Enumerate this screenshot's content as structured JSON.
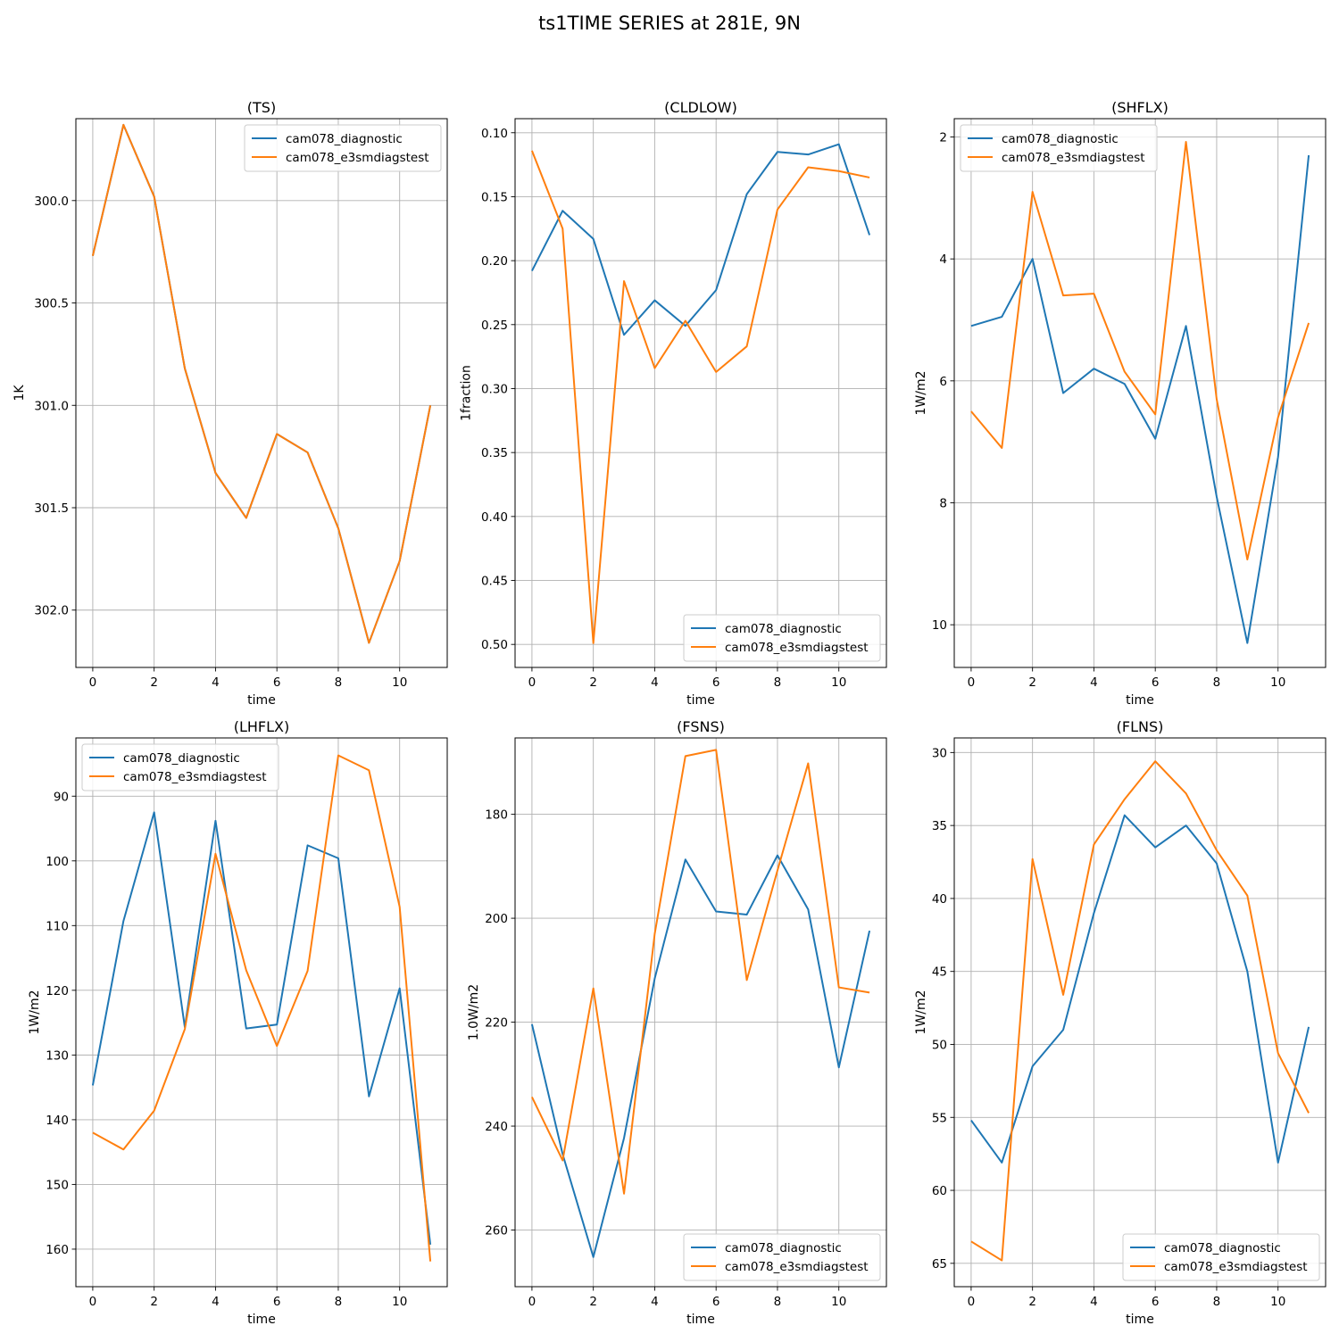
{
  "figure": {
    "title": "ts1TIME SERIES at 281E, 9N"
  },
  "colors": {
    "cam078_diagnostic": "#1f77b4",
    "cam078_e3smdiagstest": "#ff7f0e",
    "grid": "#b0b0b0"
  },
  "chart_data": [
    {
      "type": "line",
      "title": "(TS)",
      "xlabel": "time",
      "ylabel": "1K",
      "xlim": [
        -0.55,
        11.55
      ],
      "ylim": [
        302.28,
        299.6
      ],
      "y_inverted": true,
      "xticks": [
        0,
        2,
        4,
        6,
        8,
        10
      ],
      "yticks": [
        300.0,
        300.5,
        301.0,
        301.5,
        302.0
      ],
      "ytick_labels": [
        "300.0",
        "300.5",
        "301.0",
        "301.5",
        "302.0"
      ],
      "grid": true,
      "legend": "upper right",
      "x": [
        0,
        1,
        2,
        3,
        4,
        5,
        6,
        7,
        8,
        9,
        10,
        11
      ],
      "series": [
        {
          "name": "cam078_diagnostic",
          "values": [
            300.27,
            299.63,
            299.98,
            300.82,
            301.33,
            301.55,
            301.14,
            301.23,
            301.6,
            302.16,
            301.76,
            301.0
          ]
        },
        {
          "name": "cam078_e3smdiagstest",
          "values": [
            300.27,
            299.63,
            299.98,
            300.82,
            301.33,
            301.55,
            301.14,
            301.23,
            301.6,
            302.16,
            301.76,
            301.0
          ]
        }
      ]
    },
    {
      "type": "line",
      "title": "(CLDLOW)",
      "xlabel": "time",
      "ylabel": "1fraction",
      "xlim": [
        -0.55,
        11.55
      ],
      "ylim": [
        0.518,
        0.089
      ],
      "y_inverted": true,
      "xticks": [
        0,
        2,
        4,
        6,
        8,
        10
      ],
      "yticks": [
        0.1,
        0.15,
        0.2,
        0.25,
        0.3,
        0.35,
        0.4,
        0.45,
        0.5
      ],
      "ytick_labels": [
        "0.10",
        "0.15",
        "0.20",
        "0.25",
        "0.30",
        "0.35",
        "0.40",
        "0.45",
        "0.50"
      ],
      "grid": true,
      "legend": "lower right",
      "x": [
        0,
        1,
        2,
        3,
        4,
        5,
        6,
        7,
        8,
        9,
        10,
        11
      ],
      "series": [
        {
          "name": "cam078_diagnostic",
          "values": [
            0.208,
            0.161,
            0.183,
            0.258,
            0.231,
            0.251,
            0.223,
            0.148,
            0.115,
            0.117,
            0.109,
            0.18
          ]
        },
        {
          "name": "cam078_e3smdiagstest",
          "values": [
            0.114,
            0.175,
            0.499,
            0.216,
            0.284,
            0.247,
            0.287,
            0.267,
            0.16,
            0.127,
            0.13,
            0.135
          ]
        }
      ]
    },
    {
      "type": "line",
      "title": "(SHFLX)",
      "xlabel": "time",
      "ylabel": "1W/m2",
      "xlim": [
        -0.55,
        11.55
      ],
      "ylim": [
        10.7,
        1.7
      ],
      "y_inverted": true,
      "xticks": [
        0,
        2,
        4,
        6,
        8,
        10
      ],
      "yticks": [
        2,
        4,
        6,
        8,
        10
      ],
      "ytick_labels": [
        "2",
        "4",
        "6",
        "8",
        "10"
      ],
      "grid": true,
      "legend": "upper left",
      "x": [
        0,
        1,
        2,
        3,
        4,
        5,
        6,
        7,
        8,
        9,
        10,
        11
      ],
      "series": [
        {
          "name": "cam078_diagnostic",
          "values": [
            5.1,
            4.95,
            4.0,
            6.2,
            5.8,
            6.05,
            6.95,
            5.1,
            7.9,
            10.3,
            7.25,
            2.3
          ]
        },
        {
          "name": "cam078_e3smdiagstest",
          "values": [
            6.5,
            7.1,
            2.9,
            4.6,
            4.57,
            5.85,
            6.55,
            2.08,
            6.3,
            8.93,
            6.6,
            5.05
          ]
        }
      ]
    },
    {
      "type": "line",
      "title": "(LHFLX)",
      "xlabel": "time",
      "ylabel": "1W/m2",
      "xlim": [
        -0.55,
        11.55
      ],
      "ylim": [
        165.8,
        81.0
      ],
      "y_inverted": true,
      "xticks": [
        0,
        2,
        4,
        6,
        8,
        10
      ],
      "yticks": [
        90,
        100,
        110,
        120,
        130,
        140,
        150,
        160
      ],
      "ytick_labels": [
        "90",
        "100",
        "110",
        "120",
        "130",
        "140",
        "150",
        "160"
      ],
      "grid": true,
      "legend": "upper left",
      "x": [
        0,
        1,
        2,
        3,
        4,
        5,
        6,
        7,
        8,
        9,
        10,
        11
      ],
      "series": [
        {
          "name": "cam078_diagnostic",
          "values": [
            134.7,
            109.3,
            92.5,
            125.7,
            93.8,
            125.9,
            125.3,
            97.6,
            99.6,
            136.4,
            119.7,
            159.3
          ]
        },
        {
          "name": "cam078_e3smdiagstest",
          "values": [
            142.0,
            144.6,
            138.6,
            126.0,
            98.9,
            116.9,
            128.6,
            117.0,
            83.7,
            86.0,
            107.1,
            161.9
          ]
        }
      ]
    },
    {
      "type": "line",
      "title": "(FSNS)",
      "xlabel": "time",
      "ylabel": "1.0W/m2",
      "xlim": [
        -0.55,
        11.55
      ],
      "ylim": [
        270.9,
        165.3
      ],
      "y_inverted": true,
      "xticks": [
        0,
        2,
        4,
        6,
        8,
        10
      ],
      "yticks": [
        180,
        200,
        220,
        240,
        260
      ],
      "ytick_labels": [
        "180",
        "200",
        "220",
        "240",
        "260"
      ],
      "grid": true,
      "legend": "lower right",
      "x": [
        0,
        1,
        2,
        3,
        4,
        5,
        6,
        7,
        8,
        9,
        10,
        11
      ],
      "series": [
        {
          "name": "cam078_diagnostic",
          "values": [
            220.4,
            245.4,
            265.2,
            242.3,
            211.6,
            188.7,
            198.7,
            199.3,
            187.9,
            198.3,
            228.7,
            202.4
          ]
        },
        {
          "name": "cam078_e3smdiagstest",
          "values": [
            234.4,
            246.6,
            213.5,
            253.0,
            203.0,
            168.8,
            167.6,
            211.9,
            190.8,
            170.2,
            213.3,
            214.3
          ]
        }
      ]
    },
    {
      "type": "line",
      "title": "(FLNS)",
      "xlabel": "time",
      "ylabel": "1W/m2",
      "xlim": [
        -0.55,
        11.55
      ],
      "ylim": [
        66.6,
        29.0
      ],
      "y_inverted": true,
      "xticks": [
        0,
        2,
        4,
        6,
        8,
        10
      ],
      "yticks": [
        30,
        35,
        40,
        45,
        50,
        55,
        60,
        65
      ],
      "ytick_labels": [
        "30",
        "35",
        "40",
        "45",
        "50",
        "55",
        "60",
        "65"
      ],
      "grid": true,
      "legend": "lower right",
      "x": [
        0,
        1,
        2,
        3,
        4,
        5,
        6,
        7,
        8,
        9,
        10,
        11
      ],
      "series": [
        {
          "name": "cam078_diagnostic",
          "values": [
            55.2,
            58.1,
            51.5,
            49.0,
            41.0,
            34.3,
            36.5,
            35.0,
            37.6,
            45.0,
            58.1,
            48.8
          ]
        },
        {
          "name": "cam078_e3smdiagstest",
          "values": [
            63.5,
            64.8,
            37.3,
            46.6,
            36.3,
            33.2,
            30.6,
            32.8,
            36.7,
            39.8,
            50.6,
            54.7
          ]
        }
      ]
    }
  ]
}
